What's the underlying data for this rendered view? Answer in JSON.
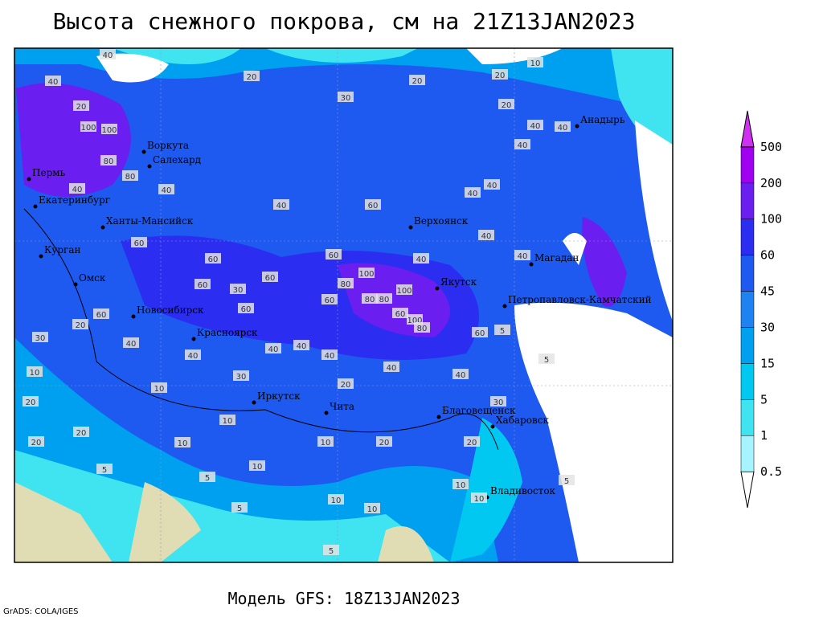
{
  "title": "Высота снежного покрова, см на 21Z13JAN2023",
  "model": "Модель GFS: 18Z13JAN2023",
  "credit": "GrADS: COLA/IGES",
  "cities": [
    "Воркута",
    "Салехард",
    "Пермь",
    "Екатеринбург",
    "Ханты-Мансийск",
    "Курган",
    "Омск",
    "Новосибирск",
    "Красноярск",
    "Иркутск",
    "Чита",
    "Верхоянск",
    "Якутск",
    "Магадан",
    "Анадырь",
    "Петропавловск-Камчатский",
    "Благовещенск",
    "Хабаровск",
    "Владивосток"
  ],
  "contour_labels": [
    40,
    40,
    20,
    30,
    20,
    20,
    10,
    20,
    100,
    100,
    80,
    80,
    40,
    40,
    40,
    60,
    40,
    40,
    60,
    60,
    60,
    100,
    40,
    40,
    40,
    60,
    30,
    60,
    80,
    80,
    80,
    100,
    100,
    80,
    60,
    60,
    60,
    60,
    20,
    30,
    40,
    40,
    40,
    40,
    40,
    40,
    40,
    60,
    5,
    5,
    10,
    10,
    30,
    20,
    20,
    20,
    10,
    10,
    10,
    20,
    10,
    5,
    5,
    5,
    10,
    10,
    10,
    10,
    5,
    20,
    30,
    20,
    5,
    40,
    40,
    40,
    20
  ],
  "legend": {
    "levels": [
      0.5,
      1,
      5,
      15,
      30,
      45,
      60,
      100,
      200,
      500
    ],
    "colors": [
      "#ffffff",
      "#a6f4ff",
      "#40e4f0",
      "#00c8f0",
      "#00a0f0",
      "#1e82f0",
      "#1e5af0",
      "#2b2df0",
      "#6a1ef0",
      "#a000f0",
      "#d030f0"
    ]
  }
}
